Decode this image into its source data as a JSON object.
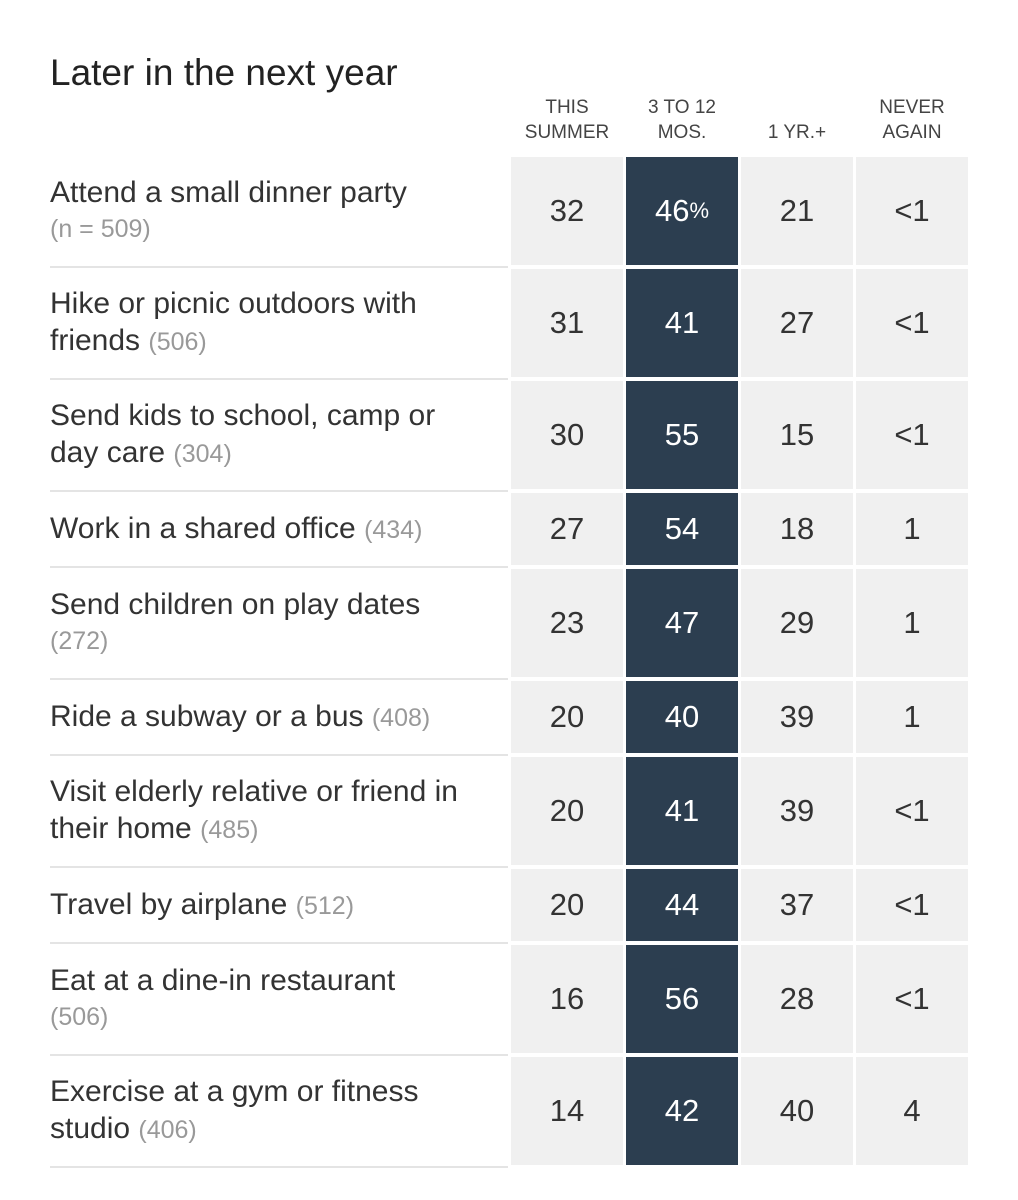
{
  "title": "Later in the next year",
  "columns": [
    {
      "line1": "THIS",
      "line2": "SUMMER"
    },
    {
      "line1": "3 TO 12",
      "line2": "MOS."
    },
    {
      "line1": "",
      "line2": "1 YR.+"
    },
    {
      "line1": "NEVER",
      "line2": "AGAIN"
    }
  ],
  "highlight_color": "#2c3e50",
  "chart_data": {
    "type": "table",
    "title": "Later in the next year",
    "columns": [
      "THIS SUMMER",
      "3 TO 12 MOS.",
      "1 YR.+",
      "NEVER AGAIN"
    ],
    "unit": "%",
    "highlighted_column": "3 TO 12 MOS.",
    "rows": [
      {
        "activity": "Attend a small dinner party",
        "n": "(n = 509)",
        "n_newline": true,
        "values": [
          "32",
          "46",
          "21",
          "<1"
        ]
      },
      {
        "activity": "Hike or picnic outdoors with friends",
        "n": "(506)",
        "n_newline": false,
        "values": [
          "31",
          "41",
          "27",
          "<1"
        ]
      },
      {
        "activity": "Send kids to school, camp or day care",
        "n": "(304)",
        "n_newline": false,
        "values": [
          "30",
          "55",
          "15",
          "<1"
        ]
      },
      {
        "activity": "Work in a shared office",
        "n": "(434)",
        "n_newline": false,
        "values": [
          "27",
          "54",
          "18",
          "1"
        ]
      },
      {
        "activity": "Send children on play dates",
        "n": "(272)",
        "n_newline": true,
        "values": [
          "23",
          "47",
          "29",
          "1"
        ]
      },
      {
        "activity": "Ride a subway or a bus",
        "n": "(408)",
        "n_newline": false,
        "values": [
          "20",
          "40",
          "39",
          "1"
        ]
      },
      {
        "activity": "Visit elderly relative or friend in their home",
        "n": "(485)",
        "n_newline": false,
        "values": [
          "20",
          "41",
          "39",
          "<1"
        ]
      },
      {
        "activity": "Travel by airplane",
        "n": "(512)",
        "n_newline": false,
        "values": [
          "20",
          "44",
          "37",
          "<1"
        ]
      },
      {
        "activity": "Eat at a dine-in restaurant",
        "n": "(506)",
        "n_newline": true,
        "values": [
          "16",
          "56",
          "28",
          "<1"
        ]
      },
      {
        "activity": "Exercise at a gym or fitness studio",
        "n": "(406)",
        "n_newline": false,
        "values": [
          "14",
          "42",
          "40",
          "4"
        ]
      }
    ]
  }
}
